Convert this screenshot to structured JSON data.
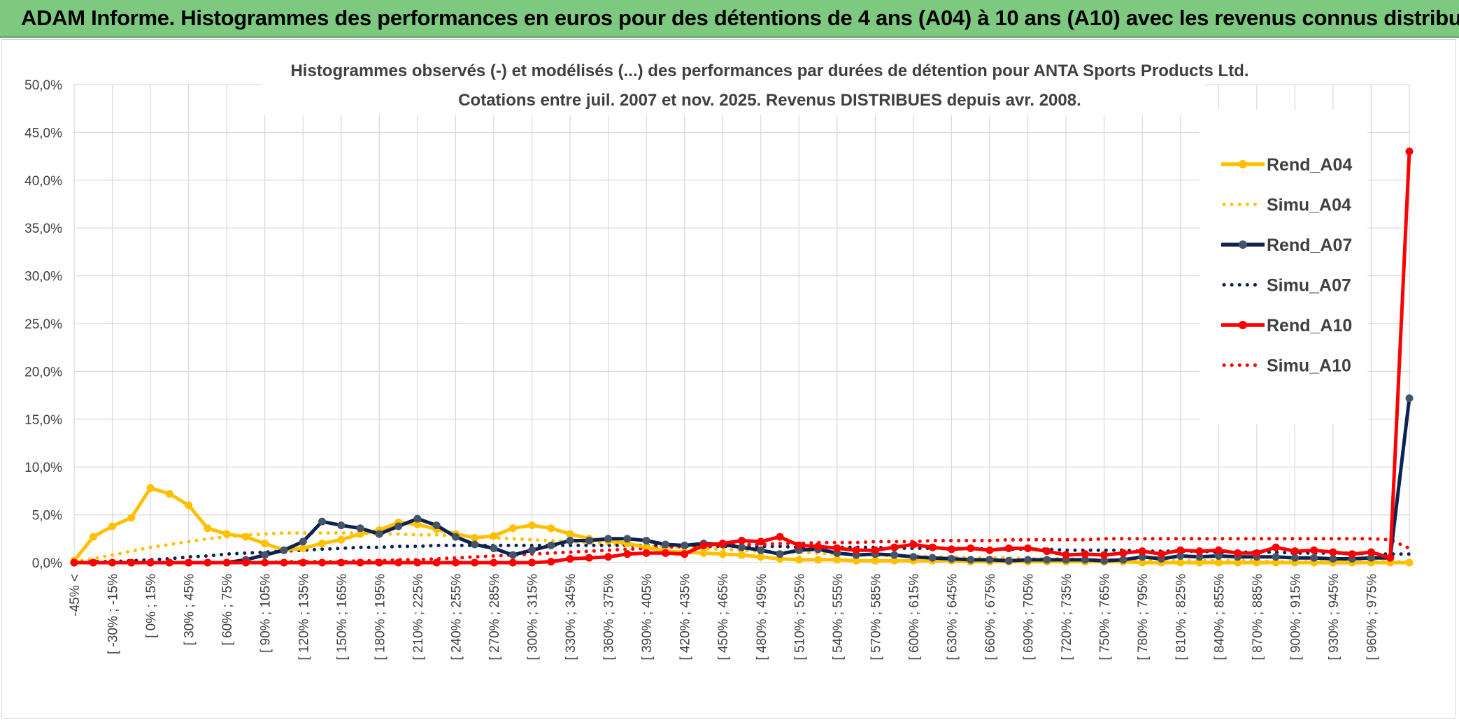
{
  "header": {
    "title": "ADAM Informe. Histogrammes des performances en euros pour des détentions de 4 ans (A04) à 10 ans (A10) avec les revenus connus distribués"
  },
  "chart_data": {
    "type": "line",
    "title_line1": "Histogrammes observés (-) et modélisés (...) des performances par durées de détention pour ANTA Sports Products Ltd.",
    "title_line2": "Cotations entre juil. 2007 et nov. 2025. Revenus DISTRIBUES depuis avr. 2008.",
    "ylim": [
      0,
      50
    ],
    "y_ticks": [
      "0,0%",
      "5,0%",
      "10,0%",
      "15,0%",
      "20,0%",
      "25,0%",
      "30,0%",
      "35,0%",
      "40,0%",
      "45,0%",
      "50,0%"
    ],
    "x_tick_labels": [
      "-45% <",
      "[ -30% ; -15%",
      "[ 0% ; 15%",
      "[ 30% ; 45%",
      "[ 60% ; 75%",
      "[ 90% ; 105%",
      "[ 120% ; 135%",
      "[ 150% ; 165%",
      "[ 180% ; 195%",
      "[ 210% ; 225%",
      "[ 240% ; 255%",
      "[ 270% ; 285%",
      "[ 300% ; 315%",
      "[ 330% ; 345%",
      "[ 360% ; 375%",
      "[ 390% ; 405%",
      "[ 420% ; 435%",
      "[ 450% ; 465%",
      "[ 480% ; 495%",
      "[ 510% ; 525%",
      "[ 540% ; 555%",
      "[ 570% ; 585%",
      "[ 600% ; 615%",
      "[ 630% ; 645%",
      "[ 660% ; 675%",
      "[ 690% ; 705%",
      "[ 720% ; 735%",
      "[ 750% ; 765%",
      "[ 780% ; 795%",
      "[ 810% ; 825%",
      "[ 840% ; 855%",
      "[ 870% ; 885%",
      "[ 900% ; 915%",
      "[ 930% ; 945%",
      "[ 960% ; 975%"
    ],
    "grid": true,
    "legend_position": "right",
    "series": [
      {
        "name": "Rend_A04",
        "style": "solid",
        "color": "#ffc000",
        "values": [
          0.2,
          2.7,
          3.8,
          4.7,
          7.8,
          7.2,
          6.0,
          3.6,
          3.0,
          2.7,
          2.0,
          1.3,
          1.5,
          2.0,
          2.4,
          3.0,
          3.4,
          4.2,
          4.0,
          3.5,
          3.0,
          2.6,
          2.8,
          3.6,
          3.9,
          3.6,
          3.0,
          2.5,
          2.3,
          2.0,
          1.6,
          1.2,
          1.1,
          1.0,
          0.9,
          0.8,
          0.6,
          0.4,
          0.3,
          0.3,
          0.3,
          0.2,
          0.2,
          0.2,
          0.2,
          0.2,
          0.2,
          0.1,
          0.1,
          0.1,
          0.1,
          0.1,
          0.1,
          0.1,
          0.1,
          0.1,
          0.0,
          0.0,
          0.0,
          0.0,
          0.0,
          0.0,
          0.0,
          0.0,
          0.0,
          0.0,
          0.0,
          0.0,
          0.0,
          0.0,
          0.0
        ]
      },
      {
        "name": "Simu_A04",
        "style": "dotted",
        "color": "#ffc000",
        "values": [
          0.1,
          0.4,
          0.8,
          1.2,
          1.6,
          1.9,
          2.2,
          2.5,
          2.7,
          2.9,
          3.0,
          3.1,
          3.1,
          3.1,
          3.1,
          3.1,
          3.0,
          3.0,
          2.9,
          2.9,
          2.8,
          2.7,
          2.6,
          2.5,
          2.4,
          2.3,
          2.2,
          2.1,
          2.0,
          1.9,
          1.8,
          1.7,
          1.6,
          1.5,
          1.4,
          1.3,
          1.2,
          1.1,
          1.1,
          1.0,
          0.9,
          0.9,
          0.8,
          0.7,
          0.7,
          0.6,
          0.6,
          0.5,
          0.5,
          0.5,
          0.4,
          0.4,
          0.4,
          0.3,
          0.3,
          0.3,
          0.3,
          0.2,
          0.2,
          0.2,
          0.2,
          0.2,
          0.2,
          0.1,
          0.1,
          0.1,
          0.1,
          0.1,
          0.1,
          0.1,
          0.1
        ]
      },
      {
        "name": "Rend_A07",
        "style": "solid",
        "color": "#0e2251",
        "values": [
          0.0,
          0.0,
          0.0,
          0.0,
          0.0,
          0.0,
          0.0,
          0.0,
          0.0,
          0.3,
          0.8,
          1.3,
          2.2,
          4.3,
          3.9,
          3.6,
          3.0,
          3.8,
          4.6,
          3.9,
          2.7,
          1.9,
          1.5,
          0.8,
          1.3,
          1.8,
          2.3,
          2.3,
          2.5,
          2.5,
          2.3,
          1.9,
          1.8,
          2.0,
          1.9,
          1.6,
          1.3,
          0.9,
          1.3,
          1.4,
          1.0,
          0.8,
          0.9,
          0.8,
          0.6,
          0.5,
          0.4,
          0.3,
          0.3,
          0.2,
          0.3,
          0.3,
          0.3,
          0.3,
          0.2,
          0.3,
          0.6,
          0.4,
          0.7,
          0.6,
          0.7,
          0.6,
          0.6,
          0.6,
          0.5,
          0.5,
          0.4,
          0.4,
          0.5,
          0.5,
          17.2
        ]
      },
      {
        "name": "Simu_A07",
        "style": "dotted",
        "color": "#0e2251",
        "values": [
          0.0,
          0.1,
          0.1,
          0.2,
          0.3,
          0.4,
          0.6,
          0.7,
          0.9,
          1.0,
          1.1,
          1.2,
          1.3,
          1.4,
          1.5,
          1.6,
          1.6,
          1.7,
          1.7,
          1.8,
          1.8,
          1.8,
          1.8,
          1.8,
          1.8,
          1.8,
          1.8,
          1.8,
          1.8,
          1.8,
          1.8,
          1.8,
          1.8,
          1.7,
          1.7,
          1.7,
          1.7,
          1.7,
          1.6,
          1.6,
          1.6,
          1.6,
          1.6,
          1.5,
          1.5,
          1.5,
          1.5,
          1.5,
          1.4,
          1.4,
          1.4,
          1.4,
          1.3,
          1.3,
          1.3,
          1.3,
          1.2,
          1.2,
          1.2,
          1.2,
          1.1,
          1.1,
          1.1,
          1.1,
          1.0,
          1.0,
          1.0,
          1.0,
          0.9,
          0.9,
          0.9
        ]
      },
      {
        "name": "Rend_A10",
        "style": "solid",
        "color": "#ff0000",
        "values": [
          0.0,
          0.0,
          0.0,
          0.0,
          0.0,
          0.0,
          0.0,
          0.0,
          0.0,
          0.0,
          0.0,
          0.0,
          0.0,
          0.0,
          0.0,
          0.0,
          0.0,
          0.0,
          0.0,
          0.0,
          0.0,
          0.0,
          0.0,
          0.0,
          0.0,
          0.1,
          0.4,
          0.5,
          0.6,
          0.9,
          1.0,
          1.0,
          0.9,
          1.8,
          2.0,
          2.3,
          2.2,
          2.7,
          1.8,
          1.7,
          1.5,
          1.3,
          1.3,
          1.6,
          1.9,
          1.6,
          1.4,
          1.5,
          1.3,
          1.5,
          1.5,
          1.2,
          0.8,
          0.9,
          0.8,
          1.0,
          1.2,
          0.9,
          1.3,
          1.2,
          1.3,
          1.0,
          1.0,
          1.6,
          1.2,
          1.3,
          1.1,
          0.9,
          1.1,
          0.5,
          43.0
        ]
      },
      {
        "name": "Simu_A10",
        "style": "dotted",
        "color": "#ff0000",
        "values": [
          0.0,
          0.0,
          0.0,
          0.0,
          0.0,
          0.0,
          0.0,
          0.0,
          0.0,
          0.0,
          0.0,
          0.1,
          0.1,
          0.1,
          0.1,
          0.2,
          0.2,
          0.3,
          0.3,
          0.4,
          0.5,
          0.6,
          0.7,
          0.8,
          0.9,
          1.0,
          1.1,
          1.2,
          1.3,
          1.4,
          1.5,
          1.6,
          1.7,
          1.7,
          1.8,
          1.9,
          1.9,
          2.0,
          2.0,
          2.1,
          2.1,
          2.1,
          2.2,
          2.2,
          2.2,
          2.3,
          2.3,
          2.3,
          2.3,
          2.4,
          2.4,
          2.4,
          2.4,
          2.4,
          2.5,
          2.5,
          2.5,
          2.5,
          2.5,
          2.5,
          2.5,
          2.5,
          2.5,
          2.5,
          2.5,
          2.5,
          2.5,
          2.5,
          2.5,
          2.4,
          1.5
        ]
      }
    ]
  }
}
